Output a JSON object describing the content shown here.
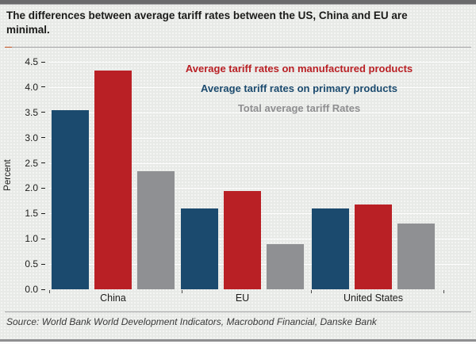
{
  "header": {
    "title": "The differences between average tariff rates between the US, China and EU are minimal."
  },
  "chart_data": {
    "type": "bar",
    "title": "The differences between average tariff rates between the US, China and EU are minimal.",
    "categories": [
      "China",
      "EU",
      "United States"
    ],
    "series": [
      {
        "name": "Average tariff rates on primary products",
        "color": "#1b4a6e",
        "values": [
          3.55,
          1.6,
          1.6
        ]
      },
      {
        "name": "Average tariff rates on manufactured products",
        "color": "#b92025",
        "values": [
          4.33,
          1.95,
          1.67
        ]
      },
      {
        "name": "Total average tariff Rates",
        "color": "#8f9093",
        "values": [
          2.33,
          0.9,
          1.3
        ]
      }
    ],
    "legend": [
      {
        "label": "Average tariff rates on manufactured products",
        "color": "#b92025"
      },
      {
        "label": "Average tariff rates on primary products",
        "color": "#1b4a6e"
      },
      {
        "label": "Total average tariff Rates",
        "color": "#8e8e90"
      }
    ],
    "xlabel": "",
    "ylabel": "Percent",
    "ylim": [
      0,
      4.5
    ],
    "yticks": [
      "0.0",
      "0.5",
      "1.0",
      "1.5",
      "2.0",
      "2.5",
      "3.0",
      "3.5",
      "4.0",
      "4.5"
    ],
    "grid": true,
    "legend_position": "top-center"
  },
  "footer": {
    "source": "Source: World Bank World Development Indicators, Macrobond Financial, Danske Bank"
  },
  "colors": {
    "background": "#e8eae7",
    "bar_primary": "#1b4a6e",
    "bar_manufactured": "#b92025",
    "bar_total": "#8f9093"
  }
}
